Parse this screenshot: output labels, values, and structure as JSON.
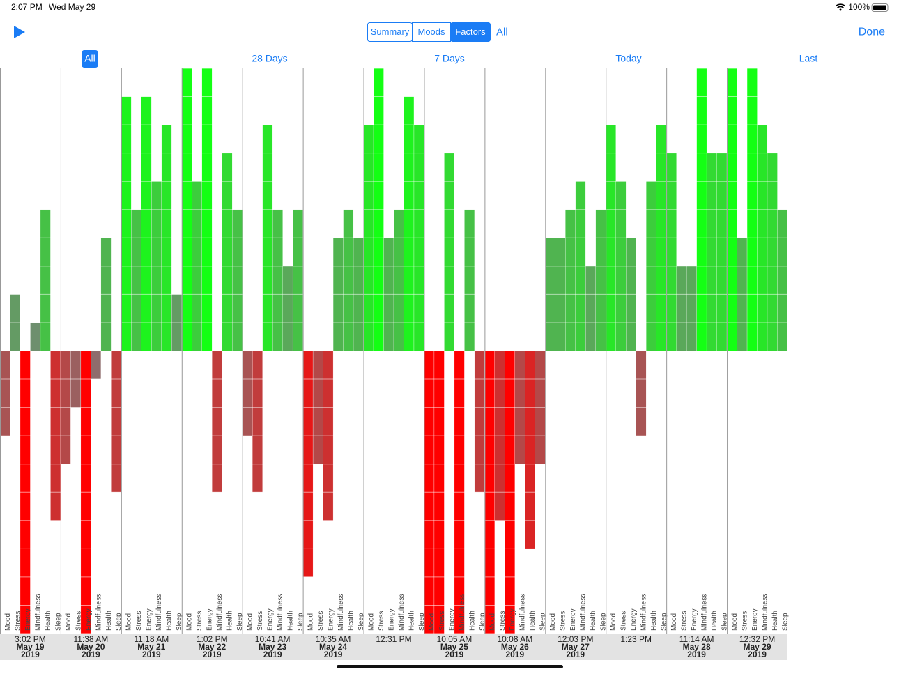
{
  "status_bar": {
    "time": "2:07 PM",
    "date": "Wed May 29",
    "battery": "100%"
  },
  "toolbar": {
    "segments": [
      "Summary",
      "Moods",
      "Factors"
    ],
    "selected_segment": 2,
    "filter": "All",
    "done": "Done"
  },
  "ranges": {
    "items": [
      "All",
      "28 Days",
      "7 Days",
      "Today",
      "Last"
    ],
    "selected": 0
  },
  "chart_data": {
    "type": "bar",
    "factors": [
      "Mood",
      "Stress",
      "Energy",
      "Mindfulness",
      "Health",
      "Sleep"
    ],
    "ylim": [
      -10,
      10
    ],
    "yticks": [
      -10,
      -9,
      -8,
      -7,
      -6,
      -5,
      -4,
      -3,
      -2,
      -1,
      0,
      1,
      2,
      3,
      4,
      5,
      6,
      7,
      8,
      9,
      10
    ],
    "entries": [
      {
        "time": "3:02 PM",
        "date": "May 19",
        "year": "2019",
        "values": [
          -3,
          2,
          -10,
          1,
          5,
          -6
        ]
      },
      {
        "time": "11:38 AM",
        "date": "May 20",
        "year": "2019",
        "values": [
          -4,
          -2,
          -10,
          -1,
          4,
          -5
        ]
      },
      {
        "time": "11:18 AM",
        "date": "May 21",
        "year": "2019",
        "values": [
          9,
          5,
          9,
          6,
          8,
          2
        ]
      },
      {
        "time": "1:02 PM",
        "date": "May 22",
        "year": "2019",
        "values": [
          10,
          6,
          10,
          -5,
          7,
          5
        ]
      },
      {
        "time": "10:41 AM",
        "date": "May 23",
        "year": "2019",
        "values": [
          -3,
          -5,
          8,
          5,
          3,
          5
        ]
      },
      {
        "time": "10:35 AM",
        "date": "May 24",
        "year": "2019",
        "values": [
          -8,
          -4,
          -6,
          4,
          5,
          4
        ]
      },
      {
        "time": "12:31 PM",
        "values": [
          8,
          10,
          4,
          5,
          9,
          8
        ]
      },
      {
        "time": "10:05 AM",
        "date": "May 25",
        "year": "2019",
        "values": [
          -10,
          -10,
          7,
          -10,
          5,
          -5
        ]
      },
      {
        "time": "10:08 AM",
        "date": "May 26",
        "year": "2019",
        "values": [
          -10,
          -6,
          -10,
          -4,
          -7,
          -4
        ]
      },
      {
        "time": "12:03 PM",
        "date": "May 27",
        "year": "2019",
        "values": [
          4,
          4,
          5,
          6,
          3,
          5
        ]
      },
      {
        "time": "1:23 PM",
        "values": [
          8,
          6,
          4,
          -3,
          6,
          8
        ]
      },
      {
        "time": "11:14 AM",
        "date": "May 28",
        "year": "2019",
        "values": [
          7,
          3,
          3,
          10,
          7,
          7
        ]
      },
      {
        "time": "12:32 PM",
        "date": "May 29",
        "year": "2019",
        "values": [
          10,
          4,
          10,
          8,
          7,
          5
        ]
      }
    ]
  }
}
